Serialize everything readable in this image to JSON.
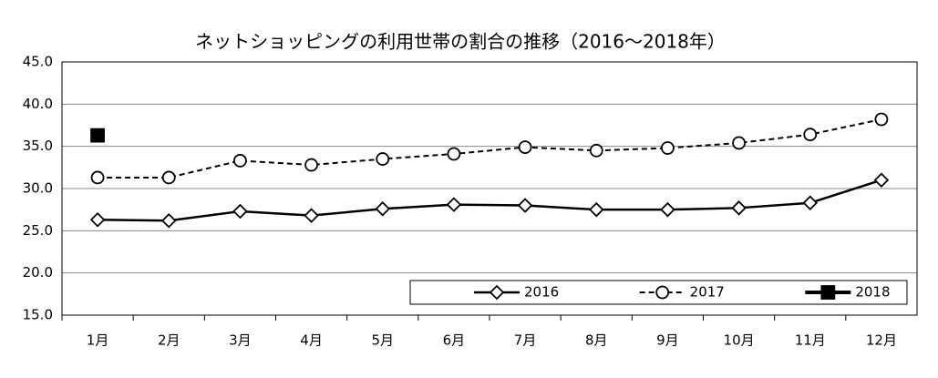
{
  "chart_data": {
    "type": "line",
    "title": "ネットショッピングの利用世帯の割合の推移（2016～2018年）",
    "categories": [
      "1月",
      "2月",
      "3月",
      "4月",
      "5月",
      "6月",
      "7月",
      "8月",
      "9月",
      "10月",
      "11月",
      "12月"
    ],
    "series": [
      {
        "name": "2016",
        "color": "#000000",
        "style": "solid",
        "marker": "diamond",
        "values": [
          26.3,
          26.2,
          27.3,
          26.8,
          27.6,
          28.1,
          28.0,
          27.5,
          27.5,
          27.7,
          28.3,
          31.0
        ]
      },
      {
        "name": "2017",
        "color": "#000000",
        "style": "dashed",
        "marker": "circle",
        "values": [
          31.3,
          31.3,
          33.3,
          32.8,
          33.5,
          34.1,
          34.9,
          34.5,
          34.8,
          35.4,
          36.4,
          38.2
        ]
      },
      {
        "name": "2018",
        "color": "#000000",
        "style": "bold",
        "marker": "square",
        "values": [
          36.3,
          null,
          null,
          null,
          null,
          null,
          null,
          null,
          null,
          null,
          null,
          null
        ]
      }
    ],
    "ylim": [
      15,
      45
    ],
    "yticks": [
      {
        "value": 15,
        "label": "15.0"
      },
      {
        "value": 20,
        "label": "20.0"
      },
      {
        "value": 25,
        "label": "25.0"
      },
      {
        "value": 30,
        "label": "30.0"
      },
      {
        "value": 35,
        "label": "35.0"
      },
      {
        "value": 40,
        "label": "40.0"
      },
      {
        "value": 45,
        "label": "45.0"
      }
    ],
    "grid": true,
    "legend": "lower right"
  }
}
